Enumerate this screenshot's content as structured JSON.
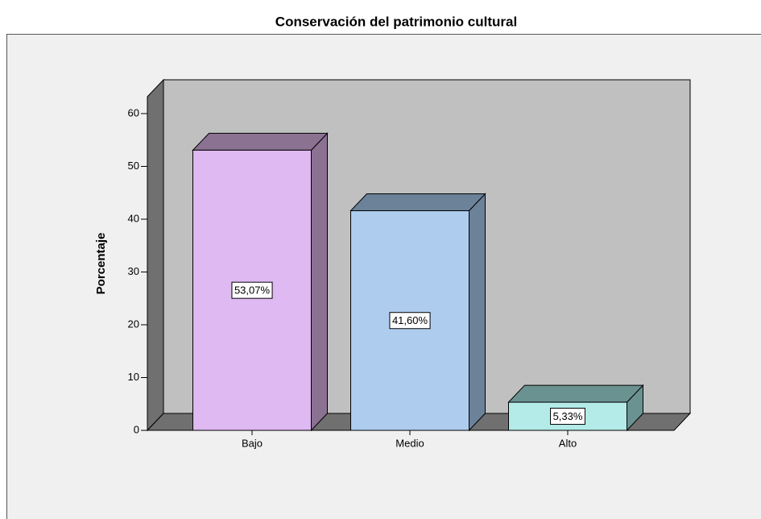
{
  "chart_data": {
    "type": "bar3d",
    "title": "Conservación del patrimonio cultural",
    "y_label": "Porcentaje",
    "categories": [
      "Bajo",
      "Medio",
      "Alto"
    ],
    "values": [
      53.07,
      41.6,
      5.33
    ],
    "value_labels": [
      "53,07%",
      "41,60%",
      "5,33%"
    ],
    "colors": [
      "#dfb9f2",
      "#aecdee",
      "#b4ebe8"
    ],
    "side_colors": [
      "#8b7192",
      "#6b8299",
      "#6a9291"
    ],
    "ylim": [
      0,
      63.2
    ],
    "yticks": [
      0,
      10,
      20,
      30,
      40,
      50,
      60
    ]
  }
}
